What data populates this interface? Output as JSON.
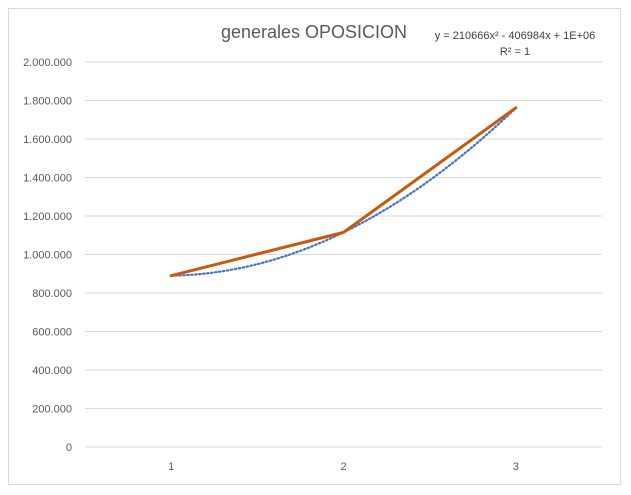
{
  "chart_data": {
    "type": "line",
    "title": "generales OPOSICION",
    "xlabel": "",
    "ylabel": "",
    "categories": [
      "1",
      "2",
      "3"
    ],
    "x": [
      1,
      2,
      3
    ],
    "ylim": [
      0,
      2000000
    ],
    "ytick_values": [
      0,
      200000,
      400000,
      600000,
      800000,
      1000000,
      1200000,
      1400000,
      1600000,
      1800000,
      2000000
    ],
    "ytick_labels": [
      "0",
      "200.000",
      "400.000",
      "600.000",
      "800.000",
      "1.000.000",
      "1.200.000",
      "1.400.000",
      "1.600.000",
      "1.800.000",
      "2.000.000"
    ],
    "grid": true,
    "series": [
      {
        "values": [
          890000,
          1115000,
          1762000
        ],
        "color": "#C55A11",
        "style": "solid"
      }
    ],
    "trendline": {
      "type": "polynomial",
      "order": 2,
      "coefficients": [
        210666,
        -406984,
        1086318
      ],
      "color": "#4472C4",
      "style": "dotted",
      "equation": "y = 210666x² - 406984x + 1E+06",
      "r_squared": "R² = 1"
    }
  }
}
